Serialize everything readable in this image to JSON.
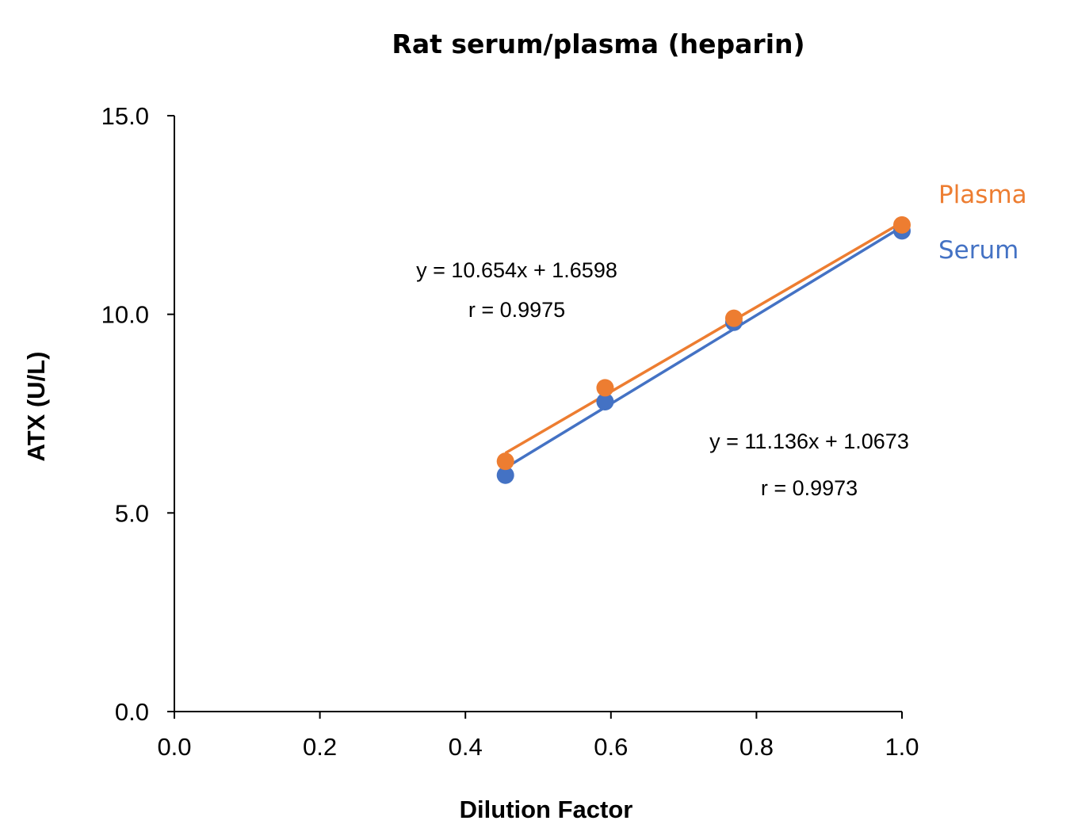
{
  "chart_data": {
    "type": "scatter",
    "title": "Rat serum/plasma (heparin)",
    "xlabel": "Dilution Factor",
    "ylabel": "ATX (U/L)",
    "xlim": [
      0,
      1
    ],
    "ylim": [
      0,
      15
    ],
    "x_ticks": [
      "0.0",
      "0.2",
      "0.4",
      "0.6",
      "0.8",
      "1.0"
    ],
    "y_ticks": [
      "0.0",
      "5.0",
      "10.0",
      "15.0"
    ],
    "grid": false,
    "legend_placement": "right",
    "series": [
      {
        "name": "Plasma",
        "color": "#ED7D31",
        "x": [
          0.455,
          0.592,
          0.769,
          1.0
        ],
        "y": [
          6.3,
          8.15,
          9.9,
          12.25
        ],
        "trendline": {
          "slope": 10.654,
          "intercept": 1.6598
        },
        "equation": "y = 10.654x + 1.6598",
        "r": "r = 0.9975"
      },
      {
        "name": "Serum",
        "color": "#4472C4",
        "x": [
          0.455,
          0.592,
          0.769,
          1.0
        ],
        "y": [
          5.95,
          7.8,
          9.8,
          12.1
        ],
        "trendline": {
          "slope": 11.136,
          "intercept": 1.0673
        },
        "equation": "y = 11.136x + 1.0673",
        "r": "r = 0.9973"
      }
    ]
  }
}
